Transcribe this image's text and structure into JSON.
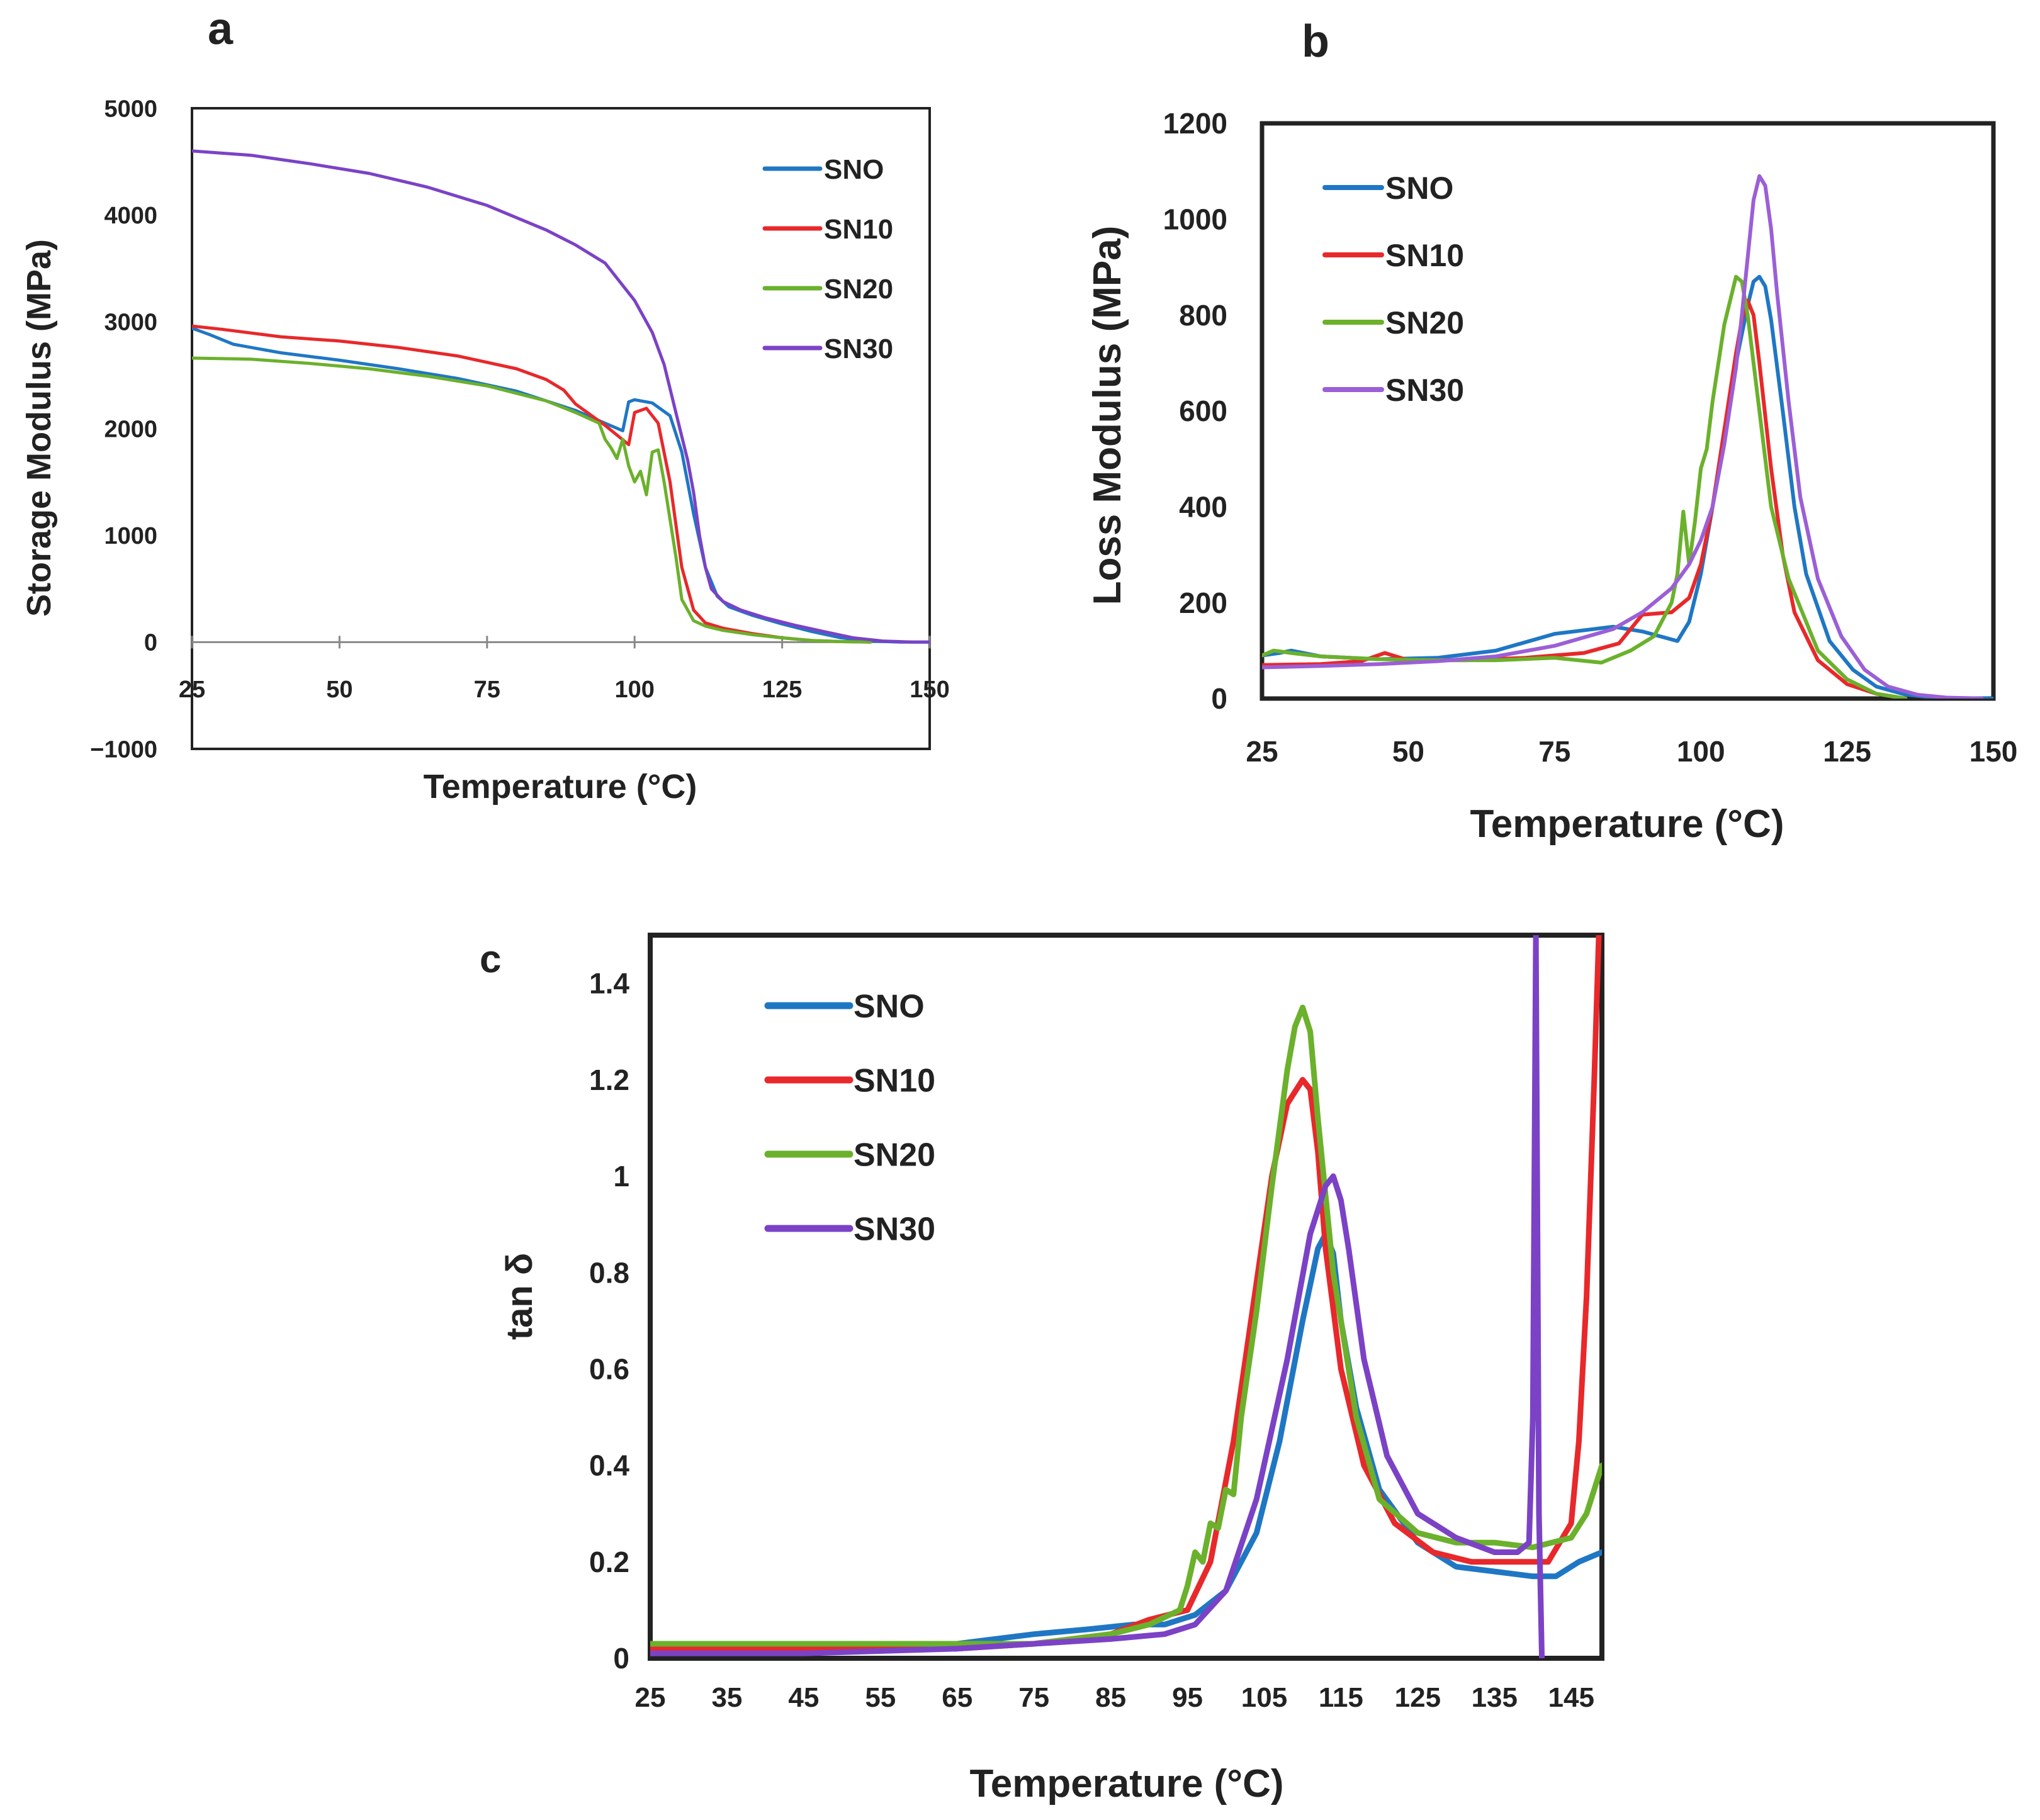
{
  "chart_data": [
    {
      "panel": "a",
      "type": "line",
      "xlabel": "Temperature (°C)",
      "ylabel": "Storage Modulus (MPa)",
      "xlim": [
        25,
        150
      ],
      "ylim": [
        -1000,
        5000
      ],
      "x_ticks": [
        25,
        50,
        75,
        100,
        125,
        150
      ],
      "x_tick_labels": [
        "25",
        "50",
        "75",
        "100",
        "125",
        "150"
      ],
      "y_ticks": [
        -1000,
        0,
        1000,
        2000,
        3000,
        4000,
        5000
      ],
      "y_tick_labels": [
        "−1000",
        "0",
        "1000",
        "2000",
        "3000",
        "4000",
        "5000"
      ],
      "legend": "top-right",
      "series": [
        {
          "name": "SNO",
          "color": "#1f77c4",
          "x": [
            25,
            28,
            32,
            40,
            50,
            60,
            70,
            80,
            90,
            95,
            98,
            99,
            100,
            103,
            106,
            108,
            110,
            112,
            114,
            116,
            120,
            125,
            130,
            135,
            140,
            145,
            150
          ],
          "y": [
            2940,
            2880,
            2790,
            2710,
            2640,
            2560,
            2470,
            2350,
            2170,
            2050,
            1980,
            2250,
            2270,
            2240,
            2120,
            1780,
            1200,
            700,
            430,
            330,
            250,
            170,
            100,
            40,
            10,
            0,
            0
          ]
        },
        {
          "name": "SN10",
          "color": "#e8282a",
          "x": [
            25,
            30,
            40,
            50,
            60,
            70,
            80,
            85,
            88,
            90,
            95,
            99,
            100,
            102,
            104,
            106,
            108,
            110,
            112,
            115,
            120,
            125,
            130,
            135,
            140
          ],
          "y": [
            2960,
            2930,
            2860,
            2820,
            2760,
            2680,
            2560,
            2460,
            2360,
            2230,
            2030,
            1850,
            2150,
            2190,
            2050,
            1500,
            700,
            300,
            180,
            130,
            80,
            40,
            15,
            5,
            0
          ]
        },
        {
          "name": "SN20",
          "color": "#6bb12c",
          "x": [
            25,
            35,
            45,
            55,
            65,
            75,
            85,
            90,
            94,
            95,
            96,
            97,
            98,
            99,
            100,
            101,
            102,
            103,
            104,
            105,
            107,
            108,
            110,
            112,
            115,
            120,
            125,
            130,
            135,
            140
          ],
          "y": [
            2660,
            2650,
            2610,
            2560,
            2490,
            2400,
            2260,
            2150,
            2050,
            1900,
            1820,
            1720,
            1900,
            1650,
            1500,
            1600,
            1380,
            1780,
            1800,
            1500,
            800,
            400,
            200,
            150,
            110,
            70,
            40,
            15,
            5,
            0
          ]
        },
        {
          "name": "SN30",
          "color": "#7b42c6",
          "x": [
            25,
            35,
            45,
            55,
            65,
            75,
            85,
            90,
            95,
            100,
            103,
            105,
            107,
            109,
            110,
            111,
            112,
            113,
            115,
            118,
            122,
            127,
            132,
            137,
            142,
            147,
            150
          ],
          "y": [
            4600,
            4560,
            4480,
            4390,
            4260,
            4090,
            3860,
            3720,
            3550,
            3200,
            2900,
            2600,
            2150,
            1700,
            1400,
            1000,
            700,
            500,
            380,
            300,
            230,
            160,
            100,
            40,
            10,
            0,
            0
          ]
        }
      ],
      "panel_label": "a"
    },
    {
      "panel": "b",
      "type": "line",
      "xlabel": "Temperature (°C)",
      "ylabel": "Loss Modulus  (MPa)",
      "xlim": [
        25,
        150
      ],
      "ylim": [
        0,
        1200
      ],
      "x_ticks": [
        25,
        50,
        75,
        100,
        125,
        150
      ],
      "x_tick_labels": [
        "25",
        "50",
        "75",
        "100",
        "125",
        "150"
      ],
      "y_ticks": [
        0,
        200,
        400,
        600,
        800,
        1000,
        1200
      ],
      "y_tick_labels": [
        "0",
        "200",
        "400",
        "600",
        "800",
        "1000",
        "1200"
      ],
      "legend": "top-left",
      "series": [
        {
          "name": "SNO",
          "color": "#1f77c4",
          "x": [
            25,
            28,
            30,
            35,
            45,
            55,
            65,
            75,
            85,
            90,
            93,
            96,
            98,
            100,
            102,
            104,
            106,
            108,
            109,
            110,
            111,
            112,
            114,
            116,
            118,
            122,
            126,
            130,
            135,
            140,
            150
          ],
          "y": [
            90,
            95,
            100,
            88,
            82,
            85,
            100,
            135,
            150,
            140,
            130,
            120,
            160,
            260,
            400,
            560,
            700,
            820,
            870,
            880,
            860,
            790,
            600,
            400,
            260,
            120,
            60,
            25,
            8,
            2,
            0
          ]
        },
        {
          "name": "SN10",
          "color": "#e8282a",
          "x": [
            25,
            35,
            42,
            46,
            50,
            60,
            70,
            80,
            86,
            90,
            95,
            98,
            100,
            102,
            104,
            106,
            107,
            108,
            109,
            110,
            112,
            114,
            116,
            120,
            125,
            130,
            135
          ],
          "y": [
            70,
            72,
            78,
            95,
            80,
            80,
            85,
            95,
            115,
            175,
            180,
            210,
            280,
            400,
            560,
            720,
            790,
            830,
            800,
            700,
            480,
            300,
            180,
            80,
            30,
            10,
            0
          ]
        },
        {
          "name": "SN20",
          "color": "#6bb12c",
          "x": [
            25,
            27,
            30,
            35,
            45,
            55,
            65,
            75,
            83,
            88,
            92,
            95,
            96,
            97,
            98,
            99,
            100,
            101,
            102,
            104,
            106,
            107,
            108,
            110,
            112,
            115,
            120,
            125,
            130,
            135
          ],
          "y": [
            90,
            100,
            95,
            88,
            82,
            80,
            80,
            85,
            75,
            100,
            130,
            200,
            260,
            390,
            280,
            370,
            480,
            520,
            620,
            780,
            880,
            870,
            800,
            600,
            400,
            250,
            100,
            40,
            10,
            0
          ]
        },
        {
          "name": "SN30",
          "color": "#9b5fd6",
          "x": [
            25,
            35,
            45,
            55,
            65,
            75,
            85,
            90,
            95,
            98,
            100,
            102,
            104,
            106,
            107,
            108,
            109,
            110,
            111,
            112,
            113,
            115,
            117,
            120,
            124,
            128,
            132,
            137,
            142,
            148
          ],
          "y": [
            65,
            68,
            72,
            78,
            88,
            110,
            145,
            180,
            230,
            280,
            330,
            400,
            530,
            690,
            800,
            920,
            1040,
            1090,
            1070,
            980,
            850,
            620,
            420,
            250,
            130,
            60,
            25,
            8,
            2,
            0
          ]
        }
      ],
      "panel_label": "b"
    },
    {
      "panel": "c",
      "type": "line",
      "xlabel": "Temperature (°C)",
      "ylabel": "tan δ",
      "xlim": [
        25,
        149
      ],
      "ylim": [
        0,
        1.5
      ],
      "x_ticks": [
        25,
        35,
        45,
        55,
        65,
        75,
        85,
        95,
        105,
        115,
        125,
        135,
        145
      ],
      "x_tick_labels": [
        "25",
        "35",
        "45",
        "55",
        "65",
        "75",
        "85",
        "95",
        "105",
        "115",
        "125",
        "135",
        "145"
      ],
      "y_ticks": [
        0,
        0.2,
        0.4,
        0.6,
        0.8,
        1,
        1.2,
        1.4
      ],
      "y_tick_labels": [
        "0",
        "0.2",
        "0.4",
        "0.6",
        "0.8",
        "1",
        "1.2",
        "1.4"
      ],
      "legend": "top-left",
      "series": [
        {
          "name": "SNO",
          "color": "#1f77c4",
          "x": [
            25,
            45,
            65,
            75,
            82,
            88,
            92,
            96,
            100,
            104,
            107,
            110,
            112,
            113,
            114,
            115,
            117,
            120,
            125,
            130,
            135,
            140,
            143,
            146,
            149
          ],
          "y": [
            0.02,
            0.02,
            0.03,
            0.05,
            0.06,
            0.07,
            0.07,
            0.09,
            0.14,
            0.26,
            0.45,
            0.7,
            0.85,
            0.88,
            0.84,
            0.7,
            0.52,
            0.35,
            0.24,
            0.19,
            0.18,
            0.17,
            0.17,
            0.2,
            0.22
          ]
        },
        {
          "name": "SN10",
          "color": "#e8282a",
          "x": [
            25,
            45,
            65,
            75,
            85,
            90,
            95,
            98,
            101,
            104,
            106,
            108,
            110,
            111,
            112,
            113,
            115,
            118,
            122,
            127,
            132,
            137,
            142,
            145,
            146,
            147,
            148,
            148.6
          ],
          "y": [
            0.02,
            0.02,
            0.02,
            0.03,
            0.05,
            0.08,
            0.1,
            0.2,
            0.45,
            0.78,
            1.0,
            1.15,
            1.2,
            1.18,
            1.05,
            0.85,
            0.6,
            0.4,
            0.28,
            0.22,
            0.2,
            0.2,
            0.2,
            0.28,
            0.45,
            0.75,
            1.2,
            1.5
          ]
        },
        {
          "name": "SN20",
          "color": "#6bb12c",
          "x": [
            25,
            45,
            65,
            75,
            85,
            90,
            94,
            95,
            96,
            97,
            98,
            99,
            100,
            101,
            102,
            104,
            106,
            108,
            109,
            110,
            111,
            112,
            114,
            117,
            120,
            125,
            130,
            135,
            140,
            145,
            147,
            149
          ],
          "y": [
            0.03,
            0.03,
            0.03,
            0.03,
            0.05,
            0.07,
            0.1,
            0.15,
            0.22,
            0.2,
            0.28,
            0.27,
            0.35,
            0.34,
            0.5,
            0.72,
            0.98,
            1.22,
            1.31,
            1.35,
            1.3,
            1.12,
            0.8,
            0.5,
            0.33,
            0.26,
            0.24,
            0.24,
            0.23,
            0.25,
            0.3,
            0.4
          ]
        },
        {
          "name": "SN30",
          "color": "#7b42c6",
          "x": [
            25,
            45,
            65,
            75,
            85,
            92,
            96,
            100,
            104,
            108,
            111,
            113,
            114,
            115,
            116,
            118,
            121,
            125,
            130,
            135,
            138,
            139.5,
            140,
            140.4,
            140.8,
            141.2,
            141.6
          ],
          "y": [
            0.01,
            0.01,
            0.02,
            0.03,
            0.04,
            0.05,
            0.07,
            0.14,
            0.33,
            0.62,
            0.88,
            0.98,
            1.0,
            0.95,
            0.85,
            0.62,
            0.42,
            0.3,
            0.25,
            0.22,
            0.22,
            0.24,
            0.5,
            1.5,
            0.3,
            -0.02,
            -0.02
          ]
        }
      ],
      "panel_label": "c"
    }
  ]
}
